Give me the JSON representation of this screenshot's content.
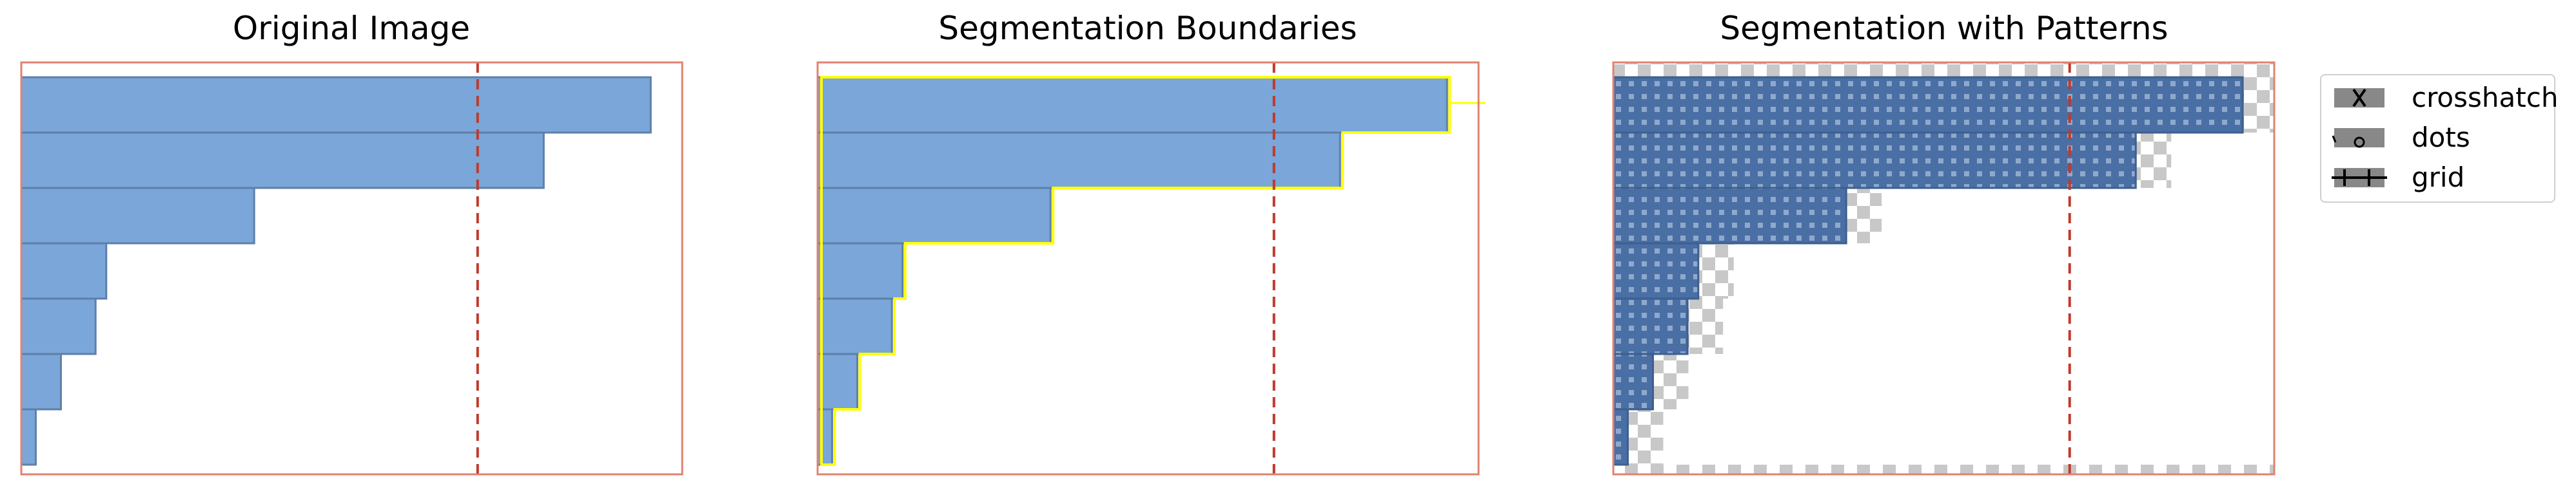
{
  "chart_data": [
    {
      "type": "bar",
      "orientation": "horizontal",
      "title": "Original Image",
      "values": [
        1.0,
        0.83,
        0.37,
        0.135,
        0.118,
        0.063,
        0.023
      ],
      "xlim": [
        0,
        1.05
      ],
      "reference_line": 0.725,
      "axis_ticks": "none",
      "bar_color": "#7aa6d9",
      "frame_color": "#e0826f"
    },
    {
      "type": "bar",
      "orientation": "horizontal",
      "title": "Segmentation Boundaries",
      "values": [
        1.0,
        0.83,
        0.37,
        0.135,
        0.118,
        0.063,
        0.023
      ],
      "xlim": [
        0,
        1.05
      ],
      "reference_line": 0.725,
      "axis_ticks": "none",
      "bar_color": "#7aa6d9",
      "boundary_color": "#ffff00"
    },
    {
      "type": "bar",
      "orientation": "horizontal",
      "title": "Segmentation with Patterns",
      "values": [
        1.0,
        0.83,
        0.37,
        0.135,
        0.118,
        0.063,
        0.023
      ],
      "xlim": [
        0,
        1.05
      ],
      "reference_line": 0.725,
      "axis_ticks": "none",
      "bar_color": "#4a6fa5",
      "background": "checkerboard"
    }
  ],
  "legend": {
    "placement": "right",
    "items": [
      {
        "label": "crosshatch",
        "icon": "crosshatch-icon"
      },
      {
        "label": "dots",
        "icon": "dots-icon"
      },
      {
        "label": "grid",
        "icon": "grid-icon"
      }
    ]
  },
  "colors": {
    "frame": "#e0826f",
    "refline": "#c0392b",
    "bar": "#7aa6d9",
    "bar_edge": "#5f7fa8",
    "pattern_bar": "#4a6fa5",
    "boundary": "#ffff00",
    "checker_dark": "#c8c8c8",
    "checker_light": "#ffffff"
  }
}
